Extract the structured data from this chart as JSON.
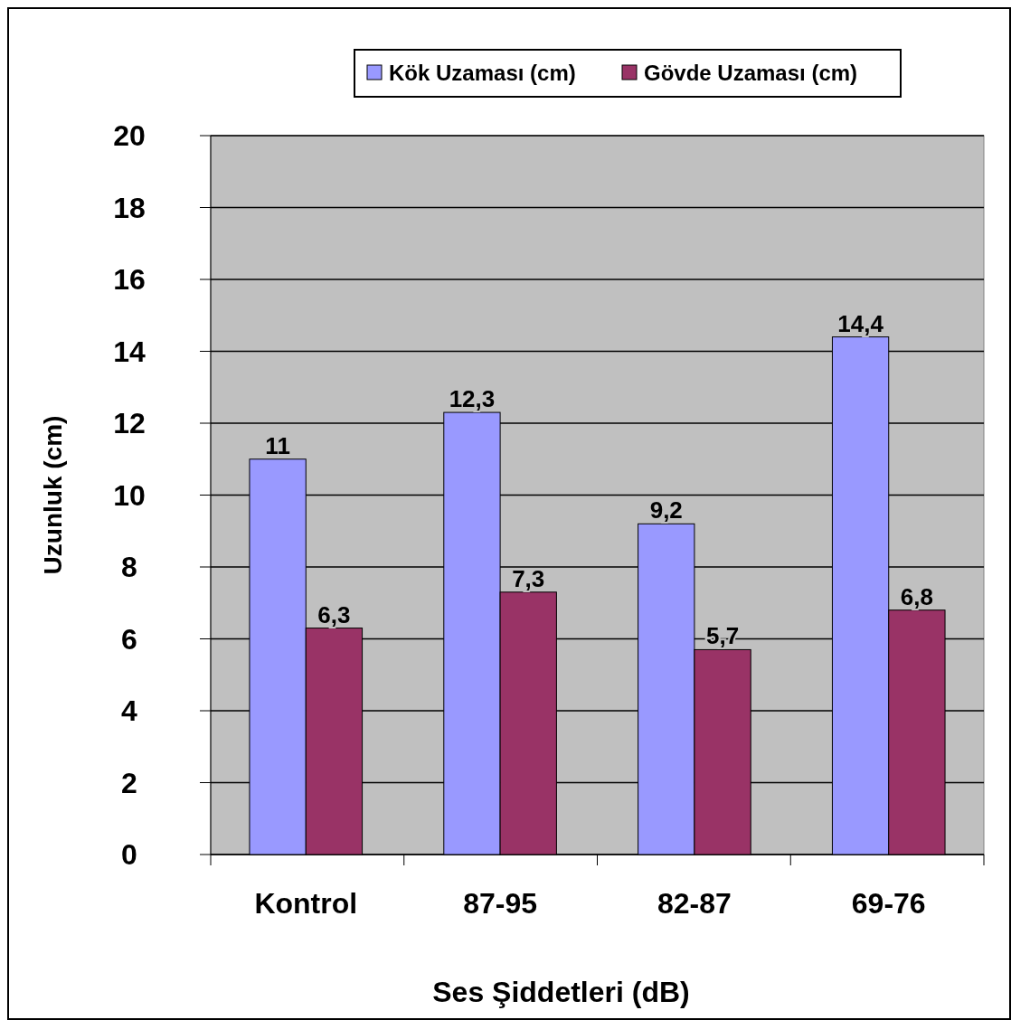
{
  "chart_data": {
    "type": "bar",
    "xlabel": "Ses Şiddetleri (dB)",
    "ylabel": "Uzunluk (cm)",
    "categories": [
      "Kontrol",
      "87-95",
      "82-87",
      "69-76"
    ],
    "series": [
      {
        "name": "Kök Uzaması (cm)",
        "color": "#9999ff",
        "values": [
          11,
          12.3,
          9.2,
          14.4
        ],
        "value_labels": [
          "11",
          "12,3",
          "9,2",
          "14,4"
        ]
      },
      {
        "name": "Gövde Uzaması (cm)",
        "color": "#993366",
        "values": [
          6.3,
          7.3,
          5.7,
          6.8
        ],
        "value_labels": [
          "6,3",
          "7,3",
          "5,7",
          "6,8"
        ]
      }
    ],
    "ylim": [
      0,
      20
    ],
    "yticks": [
      0,
      2,
      4,
      6,
      8,
      10,
      12,
      14,
      16,
      18,
      20
    ],
    "grid": "y",
    "legend": "top"
  }
}
